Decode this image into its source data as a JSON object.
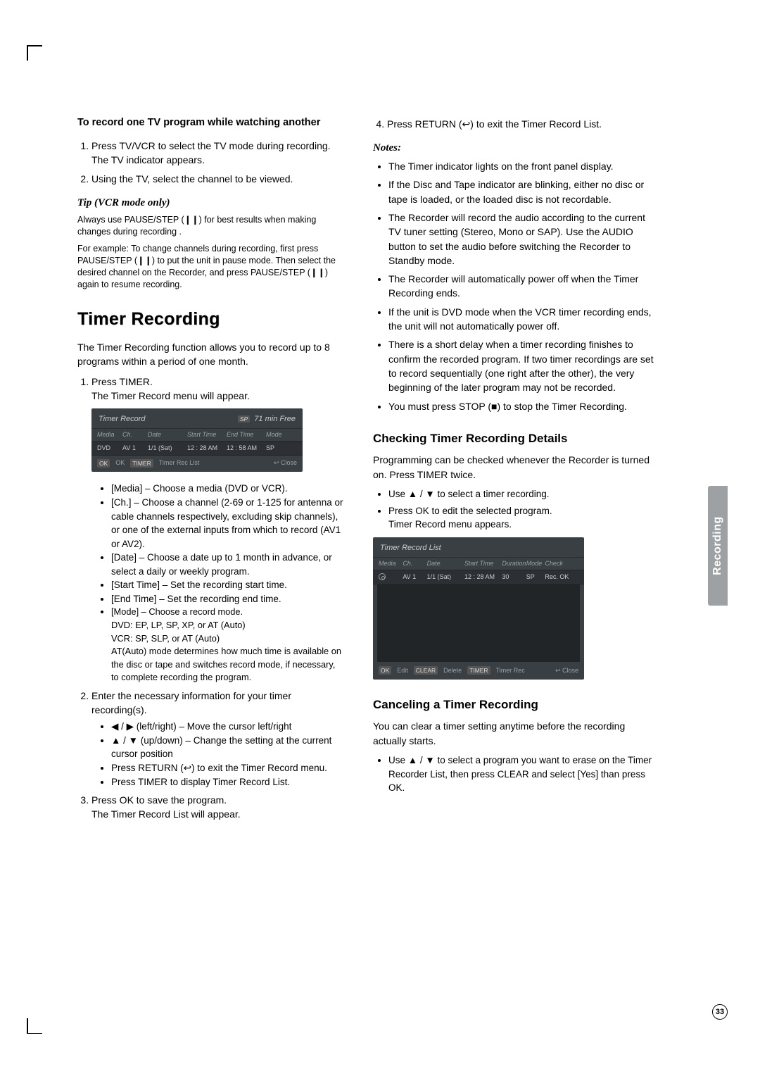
{
  "sidetab": "Recording",
  "page_number": "33",
  "left": {
    "heading_a": "To record one TV program while watching another",
    "steps_a": [
      "Press TV/VCR to select the TV mode during recording. The TV indicator appears.",
      "Using the TV, select the channel to be viewed."
    ],
    "tip_title": "Tip (VCR mode only)",
    "tip_p1": "Always use PAUSE/STEP (❙❙) for best results when making changes during recording .",
    "tip_p2": "For example: To change channels during recording, first press PAUSE/STEP (❙❙) to put the unit in pause mode. Then select the desired channel on the Recorder, and press PAUSE/STEP (❙❙) again to resume recording.",
    "section_title": "Timer Recording",
    "tr_intro": "The Timer Recording function allows you to record up to 8 programs within a period of one month.",
    "tr_step1_a": "Press TIMER.",
    "tr_step1_b": "The Timer Record menu will appear.",
    "tr_step1_items": [
      "[Media] – Choose a media (DVD or VCR).",
      "[Ch.] – Choose a channel (2-69 or 1-125 for antenna or cable channels respectively, excluding skip channels), or one of the external inputs from which to record (AV1 or AV2).",
      "[Date] – Choose a date up to 1 month in advance, or select a daily or weekly program.",
      "[Start Time] – Set the recording start time.",
      "[End Time] – Set the recording end time.",
      "[Mode] – Choose a record mode.\nDVD: EP, LP, SP, XP, or AT (Auto)\nVCR: SP, SLP, or AT (Auto)\nAT(Auto) mode determines how much time is available on the disc or tape and switches record mode, if necessary, to complete recording the program."
    ],
    "tr_step2": "Enter the necessary information for your timer recording(s).",
    "tr_step2_items": [
      "◀ / ▶ (left/right) – Move the cursor left/right",
      "▲ / ▼ (up/down) – Change the setting at the current cursor position",
      "Press RETURN (↩) to exit the Timer Record menu.",
      "Press TIMER to display Timer Record List."
    ],
    "tr_step3_a": "Press OK to save the program.",
    "tr_step3_b": "The Timer Record List will appear."
  },
  "right": {
    "step4": "Press RETURN (↩) to exit the Timer Record List.",
    "notes_title": "Notes:",
    "notes": [
      "The Timer indicator lights on the front panel display.",
      "If the Disc and Tape indicator are blinking, either no disc or tape is loaded, or the loaded disc is not recordable.",
      "The Recorder will record the audio according to the current TV tuner setting (Stereo, Mono or SAP). Use the AUDIO button to set the audio before switching the Recorder to Standby mode.",
      "The Recorder will automatically power off when the Timer Recording ends.",
      "If the unit is DVD mode when the VCR timer recording ends, the unit will not automatically power off.",
      "There is a short delay when a timer recording finishes to confirm the recorded program. If two timer recordings are set to record sequentially (one right after the other), the very beginning of the later program may not be recorded.",
      "You must press STOP (■) to stop the Timer Recording."
    ],
    "check_title": "Checking Timer Recording Details",
    "check_intro": "Programming can be checked whenever the Recorder is turned on. Press TIMER twice.",
    "check_items": [
      "Use ▲ / ▼ to select a timer recording.",
      "Press OK to edit the selected program.\nTimer Record menu appears."
    ],
    "cancel_title": "Canceling a Timer Recording",
    "cancel_intro": "You can clear a timer setting anytime before the recording actually starts.",
    "cancel_items": [
      "Use ▲ / ▼ to select a program you want to erase on the Timer Recorder List, then press CLEAR and select [Yes] than press OK."
    ]
  },
  "tr_panel": {
    "title": "Timer Record",
    "free": "71 min Free",
    "sp": "SP",
    "columns": [
      "Media",
      "Ch.",
      "Date",
      "Start Time",
      "End Time",
      "Mode"
    ],
    "row": {
      "media": "DVD",
      "ch": "AV 1",
      "date": "1/1 (Sat)",
      "start": "12 : 28 AM",
      "end": "12 : 58 AM",
      "mode": "SP"
    },
    "footer_ok": "OK",
    "footer_oklbl": "OK",
    "footer_timer": "TIMER",
    "footer_timerlbl": "Timer Rec List",
    "footer_close": "↩ Close"
  },
  "trl_panel": {
    "title": "Timer Record List",
    "columns": [
      "Media",
      "Ch.",
      "Date",
      "Start Time",
      "Duration",
      "Mode",
      "Check"
    ],
    "row": {
      "ch": "AV 1",
      "date": "1/1 (Sat)",
      "start": "12 : 28 AM",
      "dur": "30",
      "mode": "SP",
      "check": "Rec. OK"
    },
    "footer_ok": "OK",
    "footer_edit": "Edit",
    "footer_clear": "CLEAR",
    "footer_delete": "Delete",
    "footer_timer": "TIMER",
    "footer_timerlbl": "Timer Rec",
    "footer_close": "↩ Close"
  }
}
